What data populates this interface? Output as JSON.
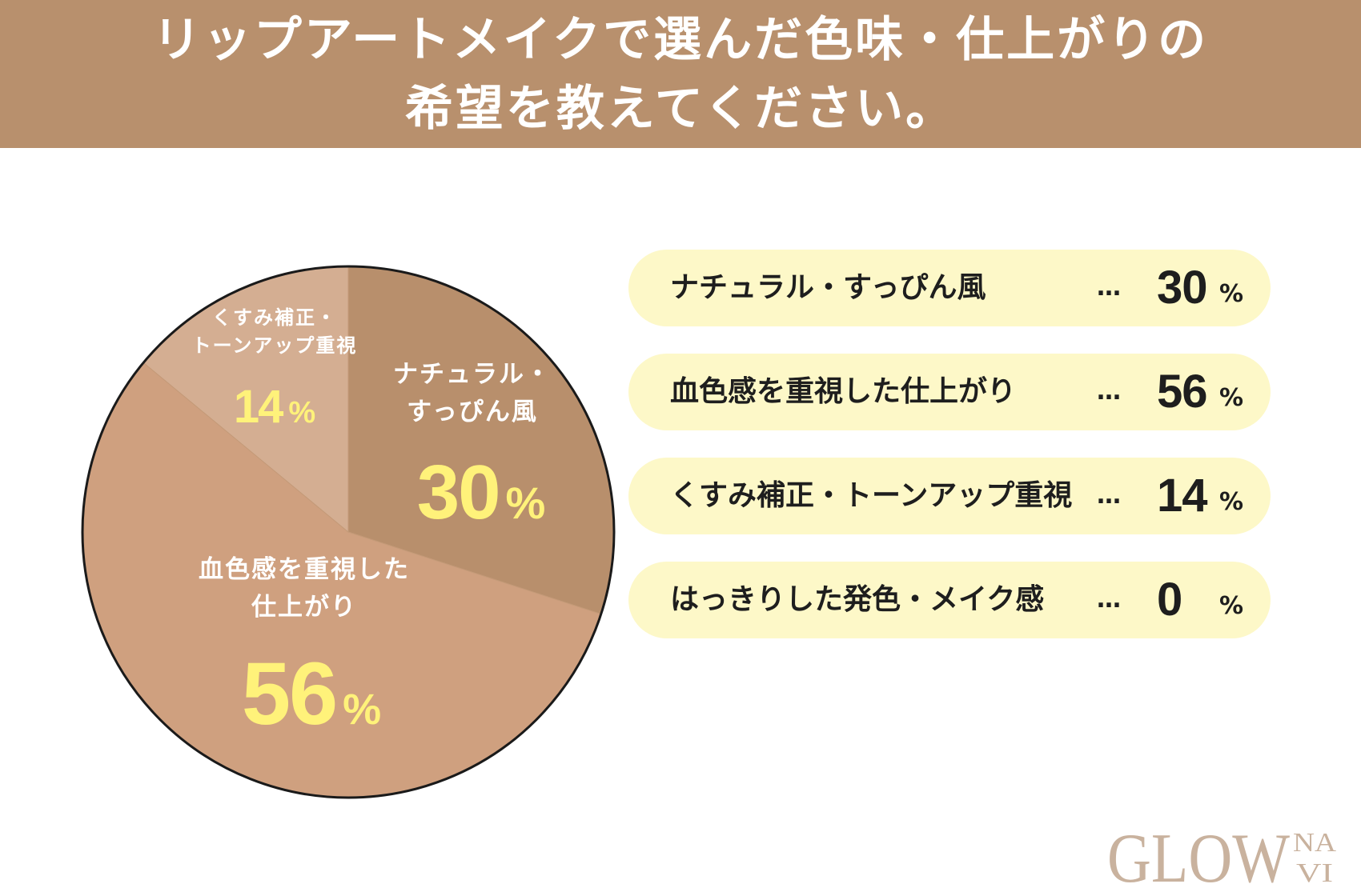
{
  "header": {
    "title_line1": "リップアートメイクで選んだ色味・仕上がりの",
    "title_line2": "希望を教えてください。"
  },
  "chart_data": {
    "type": "pie",
    "percent_sign": "%",
    "slices": [
      {
        "key": "natural",
        "label_lines": [
          "ナチュラル・",
          "すっぴん風"
        ],
        "value": 30,
        "color": "#b88f6c",
        "label_color": "#ffffff",
        "value_color": "#fff27a"
      },
      {
        "key": "flush",
        "label_lines": [
          "血色感を重視した",
          "仕上がり"
        ],
        "value": 56,
        "color": "#cfa07f",
        "label_color": "#ffffff",
        "value_color": "#fff27a"
      },
      {
        "key": "dull",
        "label_lines": [
          "くすみ補正・",
          "トーンアップ重視"
        ],
        "value": 14,
        "color": "#d4ae92",
        "label_color": "#ffffff",
        "value_color": "#fff27a"
      }
    ],
    "legend": [
      {
        "label": "ナチュラル・すっぴん風",
        "dots": "…",
        "value": "30",
        "unit": "%"
      },
      {
        "label": "血色感を重視した仕上がり",
        "dots": "…",
        "value": "56",
        "unit": "%"
      },
      {
        "label": "くすみ補正・トーンアップ重視",
        "dots": "…",
        "value": "14",
        "unit": "%"
      },
      {
        "label": "はっきりした発色・メイク感",
        "dots": "…",
        "value": "0",
        "unit": "%"
      }
    ]
  },
  "logo": {
    "main": "GLOW",
    "sub_top": "NA",
    "sub_bottom": "VI",
    "color": "#c9b29e"
  }
}
